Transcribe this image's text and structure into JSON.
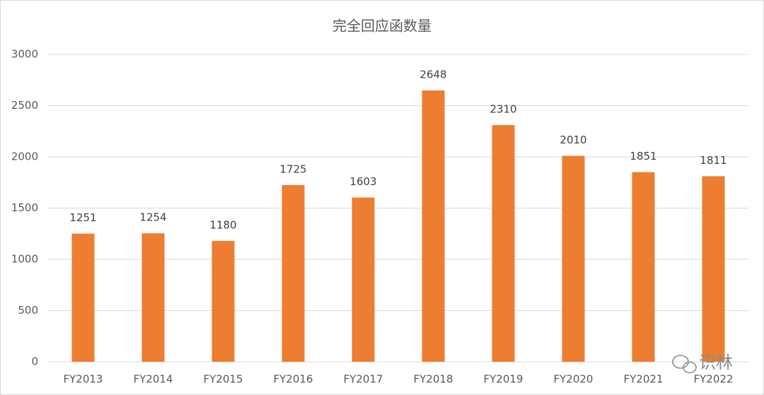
{
  "chart_data": {
    "type": "bar",
    "title": "完全回应函数量",
    "categories": [
      "FY2013",
      "FY2014",
      "FY2015",
      "FY2016",
      "FY2017",
      "FY2018",
      "FY2019",
      "FY2020",
      "FY2021",
      "FY2022"
    ],
    "values": [
      1251,
      1254,
      1180,
      1725,
      1603,
      2648,
      2310,
      2010,
      1851,
      1811
    ],
    "color": "#ed7d31",
    "ylim": [
      0,
      3000
    ],
    "yticks": [
      0,
      500,
      1000,
      1500,
      2000,
      2500,
      3000
    ],
    "grid": true,
    "watermark": "识林"
  }
}
